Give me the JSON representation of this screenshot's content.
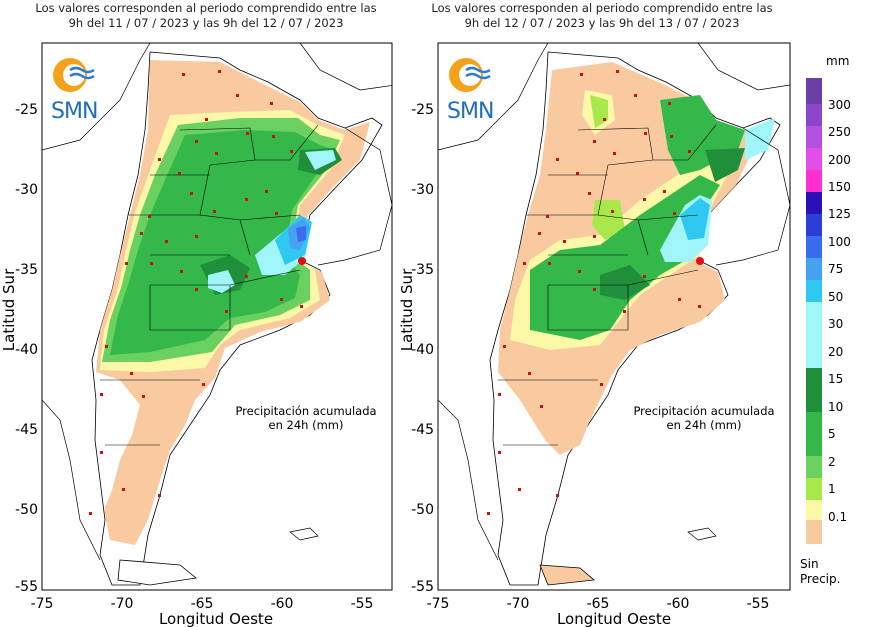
{
  "panels": [
    {
      "title_line1": "Los valores corresponden al periodo comprendido entre las",
      "title_line2": "9h del 11 / 07 / 2023  y las 9h del 12 / 07 / 2023",
      "note_line1": "Precipitación acumulada",
      "note_line2": "en 24h (mm)",
      "logo_text": "SMN"
    },
    {
      "title_line1": "Los valores corresponden al periodo comprendido entre las",
      "title_line2": "9h del 12 / 07 / 2023  y las 9h del 13 / 07 / 2023",
      "note_line1": "Precipitación acumulada",
      "note_line2": "en 24h (mm)",
      "logo_text": "SMN"
    }
  ],
  "axes": {
    "ylabel": "Latitud Sur",
    "xlabel": "Longitud Oeste",
    "yticks": [
      "-25",
      "-30",
      "-35",
      "-40",
      "-45",
      "-50",
      "-55"
    ],
    "xticks": [
      "-75",
      "-70",
      "-65",
      "-60",
      "-55"
    ]
  },
  "legend": {
    "unit": "mm",
    "labels": [
      "300",
      "250",
      "200",
      "150",
      "125",
      "100",
      "75",
      "50",
      "30",
      "20",
      "15",
      "10",
      "5",
      "2",
      "1",
      "0.1"
    ],
    "colors": [
      "#6a3fa8",
      "#8a45c8",
      "#b54fe0",
      "#e24fe8",
      "#ff2fd0",
      "#2a10b8",
      "#2a3fd8",
      "#3a6cf0",
      "#45a2f0",
      "#2fc8f0",
      "#9ff5f8",
      "#1f8f3a",
      "#34b84a",
      "#6ad060",
      "#a8e84a",
      "#fbf8a8",
      "#f9c9a0"
    ],
    "nodata_line1": "Sin",
    "nodata_line2": "Precip."
  }
}
